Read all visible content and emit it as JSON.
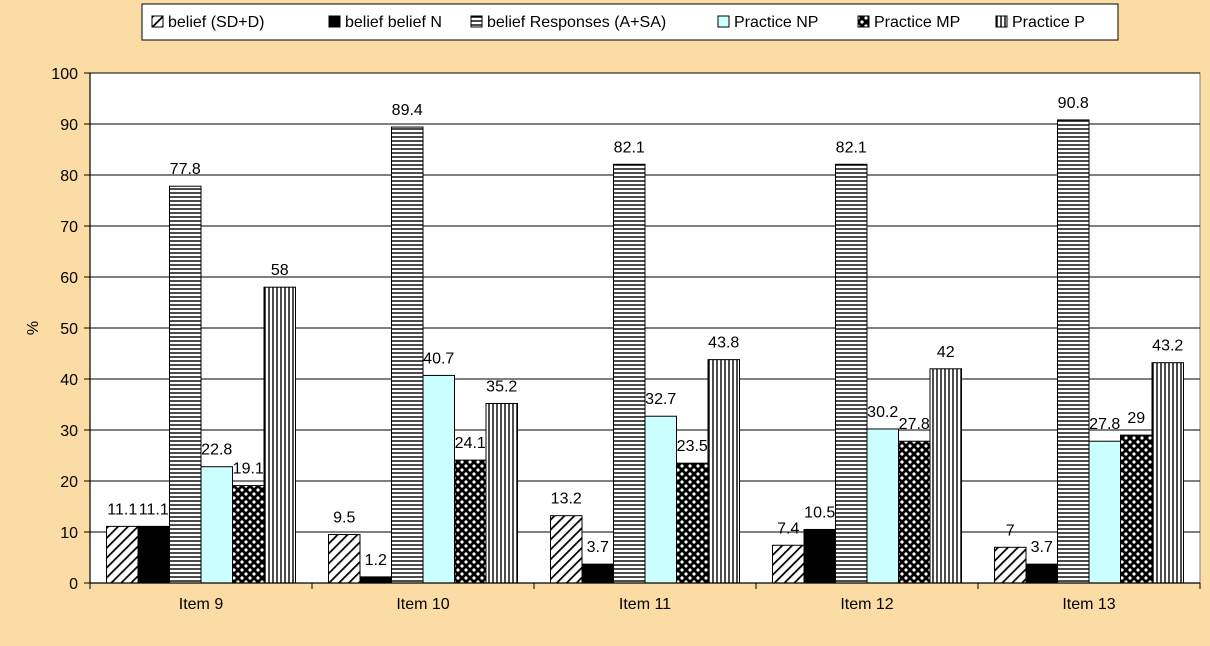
{
  "chart_data": {
    "type": "bar",
    "title": "",
    "xlabel": "",
    "ylabel": "%",
    "ylim": [
      0,
      100
    ],
    "yticks": [
      0,
      10,
      20,
      30,
      40,
      50,
      60,
      70,
      80,
      90,
      100
    ],
    "grid": true,
    "legend_position": "top",
    "categories": [
      "Item 9",
      "Item 10",
      "Item 11",
      "Item 12",
      "Item 13"
    ],
    "series": [
      {
        "name": "belief (SD+D)",
        "pattern": "diagonal-hatch",
        "color": "#000000",
        "values": [
          11.1,
          9.5,
          13.2,
          7.4,
          7
        ],
        "labels": [
          "11.1",
          "9.5",
          "13.2",
          "7.4",
          "7"
        ]
      },
      {
        "name": "belief belief N",
        "pattern": "solid",
        "color": "#000000",
        "values": [
          11.1,
          1.2,
          3.7,
          10.5,
          3.7
        ],
        "labels": [
          "11.1",
          "1.2",
          "3.7",
          "10.5",
          "3.7"
        ]
      },
      {
        "name": "belief Responses (A+SA)",
        "pattern": "horizontal-lines",
        "color": "#000000",
        "values": [
          77.8,
          89.4,
          82.1,
          82.1,
          90.8
        ],
        "labels": [
          "77.8",
          "89.4",
          "82.1",
          "82.1",
          "90.8"
        ]
      },
      {
        "name": "Practice NP",
        "pattern": "solid-light",
        "color": "#CCFFFF",
        "values": [
          22.8,
          40.7,
          32.7,
          30.2,
          27.8
        ],
        "labels": [
          "22.8",
          "40.7",
          "32.7",
          "30.2",
          "27.8"
        ]
      },
      {
        "name": "Practice MP",
        "pattern": "checker",
        "color": "#000000",
        "values": [
          19.1,
          24.1,
          23.5,
          27.8,
          29
        ],
        "labels": [
          "19.1",
          "24.1",
          "23.5",
          "27.8",
          "29"
        ]
      },
      {
        "name": "Practice P",
        "pattern": "vertical-lines",
        "color": "#000000",
        "values": [
          58,
          35.2,
          43.8,
          42,
          43.2
        ],
        "labels": [
          "58",
          "35.2",
          "43.8",
          "42",
          "43.2"
        ]
      }
    ]
  },
  "colors": {
    "background": "#FCDCA5",
    "plot_area": "#FFFFFF",
    "light_bar": "#CCFFFF",
    "ink": "#000000"
  }
}
